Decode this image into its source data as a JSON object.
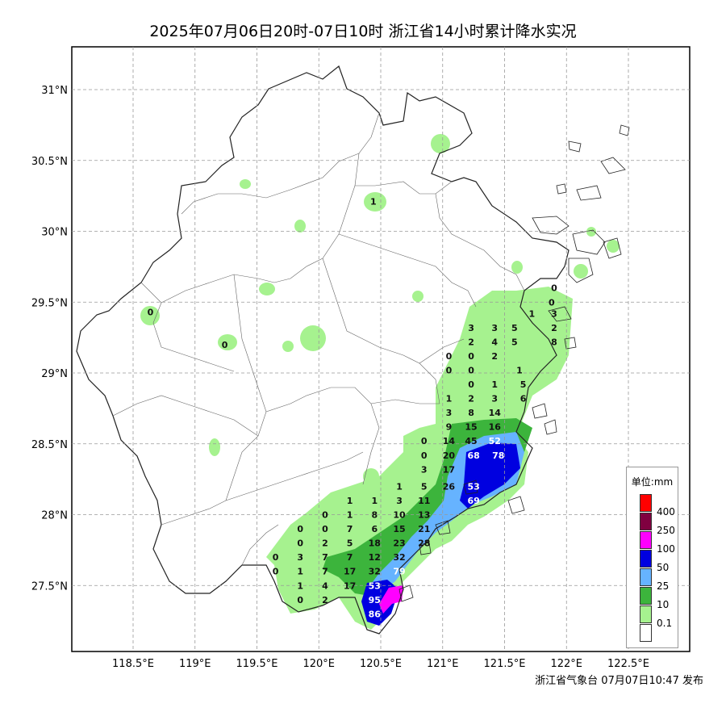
{
  "title": "2025年07月06日20时-07日10时 浙江省14小时累计降水实况",
  "footer": "浙江省气象台 07月07日10:47 发布",
  "lat_labels": [
    "31°N",
    "30.5°N",
    "30°N",
    "29.5°N",
    "29°N",
    "28.5°N",
    "28°N",
    "27.5°N"
  ],
  "lon_labels": [
    "118.5°E",
    "119°E",
    "119.5°E",
    "120°E",
    "120.5°E",
    "121°E",
    "121.5°E",
    "122°E",
    "122.5°E"
  ],
  "legend": {
    "title": "单位:mm",
    "levels": [
      {
        "label": "400",
        "color": "#ff0000"
      },
      {
        "label": "250",
        "color": "#800040"
      },
      {
        "label": "100",
        "color": "#ff00ff"
      },
      {
        "label": "50",
        "color": "#0000e0"
      },
      {
        "label": "25",
        "color": "#66b3ff"
      },
      {
        "label": "10",
        "color": "#3cb43c"
      },
      {
        "label": "0.1",
        "color": "#a6f28f"
      },
      {
        "label": "",
        "color": "#ffffff"
      }
    ]
  },
  "stations": [
    {
      "v": "1",
      "lon": 120.44,
      "lat": 30.21
    },
    {
      "v": "0",
      "lon": 118.64,
      "lat": 29.43
    },
    {
      "v": "0",
      "lon": 119.24,
      "lat": 29.2
    },
    {
      "v": "1",
      "lon": 121.72,
      "lat": 29.42
    },
    {
      "v": "0",
      "lon": 121.9,
      "lat": 29.6
    },
    {
      "v": "0",
      "lon": 121.88,
      "lat": 29.5
    },
    {
      "v": "3",
      "lon": 121.9,
      "lat": 29.42
    },
    {
      "v": "3",
      "lon": 121.23,
      "lat": 29.32
    },
    {
      "v": "3",
      "lon": 121.42,
      "lat": 29.32
    },
    {
      "v": "5",
      "lon": 121.58,
      "lat": 29.32
    },
    {
      "v": "2",
      "lon": 121.9,
      "lat": 29.32
    },
    {
      "v": "2",
      "lon": 121.23,
      "lat": 29.22
    },
    {
      "v": "4",
      "lon": 121.42,
      "lat": 29.22
    },
    {
      "v": "5",
      "lon": 121.58,
      "lat": 29.22
    },
    {
      "v": "8",
      "lon": 121.9,
      "lat": 29.22
    },
    {
      "v": "0",
      "lon": 121.05,
      "lat": 29.12
    },
    {
      "v": "0",
      "lon": 121.23,
      "lat": 29.12
    },
    {
      "v": "2",
      "lon": 121.42,
      "lat": 29.12
    },
    {
      "v": "0",
      "lon": 121.05,
      "lat": 29.02
    },
    {
      "v": "0",
      "lon": 121.23,
      "lat": 29.02
    },
    {
      "v": "1",
      "lon": 121.62,
      "lat": 29.02
    },
    {
      "v": "0",
      "lon": 121.23,
      "lat": 28.92
    },
    {
      "v": "1",
      "lon": 121.42,
      "lat": 28.92
    },
    {
      "v": "5",
      "lon": 121.65,
      "lat": 28.92
    },
    {
      "v": "1",
      "lon": 121.05,
      "lat": 28.82
    },
    {
      "v": "2",
      "lon": 121.23,
      "lat": 28.82
    },
    {
      "v": "3",
      "lon": 121.42,
      "lat": 28.82
    },
    {
      "v": "6",
      "lon": 121.65,
      "lat": 28.82
    },
    {
      "v": "3",
      "lon": 121.05,
      "lat": 28.72
    },
    {
      "v": "8",
      "lon": 121.23,
      "lat": 28.72
    },
    {
      "v": "14",
      "lon": 121.42,
      "lat": 28.72
    },
    {
      "v": "9",
      "lon": 121.05,
      "lat": 28.62
    },
    {
      "v": "15",
      "lon": 121.23,
      "lat": 28.62
    },
    {
      "v": "16",
      "lon": 121.42,
      "lat": 28.62
    },
    {
      "v": "0",
      "lon": 120.85,
      "lat": 28.52
    },
    {
      "v": "14",
      "lon": 121.05,
      "lat": 28.52
    },
    {
      "v": "45",
      "lon": 121.23,
      "lat": 28.52
    },
    {
      "v": "52",
      "lon": 121.42,
      "lat": 28.52
    },
    {
      "v": "0",
      "lon": 120.85,
      "lat": 28.42
    },
    {
      "v": "20",
      "lon": 121.05,
      "lat": 28.42
    },
    {
      "v": "68",
      "lon": 121.25,
      "lat": 28.42
    },
    {
      "v": "78",
      "lon": 121.45,
      "lat": 28.42
    },
    {
      "v": "3",
      "lon": 120.85,
      "lat": 28.32
    },
    {
      "v": "17",
      "lon": 121.05,
      "lat": 28.32
    },
    {
      "v": "1",
      "lon": 120.65,
      "lat": 28.2
    },
    {
      "v": "5",
      "lon": 120.85,
      "lat": 28.2
    },
    {
      "v": "26",
      "lon": 121.05,
      "lat": 28.2
    },
    {
      "v": "53",
      "lon": 121.25,
      "lat": 28.2
    },
    {
      "v": "1",
      "lon": 120.25,
      "lat": 28.1
    },
    {
      "v": "1",
      "lon": 120.45,
      "lat": 28.1
    },
    {
      "v": "3",
      "lon": 120.65,
      "lat": 28.1
    },
    {
      "v": "11",
      "lon": 120.85,
      "lat": 28.1
    },
    {
      "v": "69",
      "lon": 121.25,
      "lat": 28.1
    },
    {
      "v": "0",
      "lon": 120.05,
      "lat": 28.0
    },
    {
      "v": "1",
      "lon": 120.25,
      "lat": 28.0
    },
    {
      "v": "8",
      "lon": 120.45,
      "lat": 28.0
    },
    {
      "v": "10",
      "lon": 120.65,
      "lat": 28.0
    },
    {
      "v": "13",
      "lon": 120.85,
      "lat": 28.0
    },
    {
      "v": "0",
      "lon": 119.85,
      "lat": 27.9
    },
    {
      "v": "0",
      "lon": 120.05,
      "lat": 27.9
    },
    {
      "v": "7",
      "lon": 120.25,
      "lat": 27.9
    },
    {
      "v": "6",
      "lon": 120.45,
      "lat": 27.9
    },
    {
      "v": "15",
      "lon": 120.65,
      "lat": 27.9
    },
    {
      "v": "21",
      "lon": 120.85,
      "lat": 27.9
    },
    {
      "v": "0",
      "lon": 119.85,
      "lat": 27.8
    },
    {
      "v": "2",
      "lon": 120.05,
      "lat": 27.8
    },
    {
      "v": "5",
      "lon": 120.25,
      "lat": 27.8
    },
    {
      "v": "18",
      "lon": 120.45,
      "lat": 27.8
    },
    {
      "v": "23",
      "lon": 120.65,
      "lat": 27.8
    },
    {
      "v": "28",
      "lon": 120.85,
      "lat": 27.8
    },
    {
      "v": "0",
      "lon": 119.65,
      "lat": 27.7
    },
    {
      "v": "3",
      "lon": 119.85,
      "lat": 27.7
    },
    {
      "v": "7",
      "lon": 120.05,
      "lat": 27.7
    },
    {
      "v": "7",
      "lon": 120.25,
      "lat": 27.7
    },
    {
      "v": "12",
      "lon": 120.45,
      "lat": 27.7
    },
    {
      "v": "32",
      "lon": 120.65,
      "lat": 27.7
    },
    {
      "v": "0",
      "lon": 119.65,
      "lat": 27.6
    },
    {
      "v": "1",
      "lon": 119.85,
      "lat": 27.6
    },
    {
      "v": "7",
      "lon": 120.05,
      "lat": 27.6
    },
    {
      "v": "17",
      "lon": 120.25,
      "lat": 27.6
    },
    {
      "v": "32",
      "lon": 120.45,
      "lat": 27.6
    },
    {
      "v": "79",
      "lon": 120.65,
      "lat": 27.6
    },
    {
      "v": "1",
      "lon": 119.85,
      "lat": 27.5
    },
    {
      "v": "4",
      "lon": 120.05,
      "lat": 27.5
    },
    {
      "v": "17",
      "lon": 120.25,
      "lat": 27.5
    },
    {
      "v": "53",
      "lon": 120.45,
      "lat": 27.5
    },
    {
      "v": "0",
      "lon": 119.85,
      "lat": 27.4
    },
    {
      "v": "2",
      "lon": 120.05,
      "lat": 27.4
    },
    {
      "v": "95",
      "lon": 120.45,
      "lat": 27.4
    },
    {
      "v": "86",
      "lon": 120.45,
      "lat": 27.3
    }
  ]
}
